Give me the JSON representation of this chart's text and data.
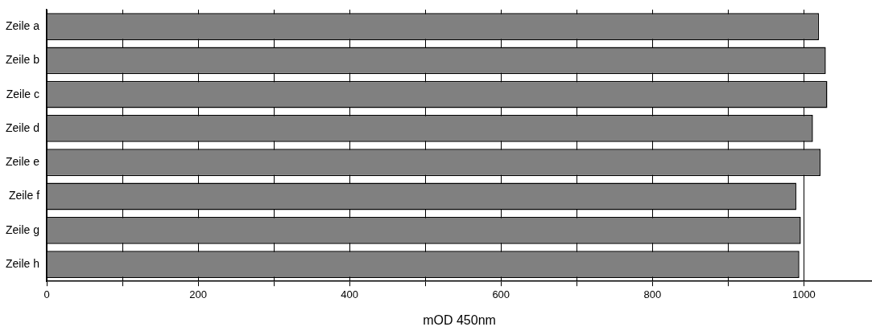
{
  "chart_data": {
    "type": "bar",
    "orientation": "horizontal",
    "xlabel": "mOD 450nm",
    "categories": [
      "Zeile a",
      "Zeile b",
      "Zeile c",
      "Zeile d",
      "Zeile e",
      "Zeile f",
      "Zeile g",
      "Zeile h"
    ],
    "values": [
      1020,
      1029,
      1031,
      1012,
      1022,
      990,
      996,
      994
    ],
    "color": "#808080",
    "xlim": [
      0,
      1090
    ],
    "xticks": [
      0,
      {
        "value": 100,
        "label": null
      },
      200,
      {
        "value": 300,
        "label": null
      },
      400,
      {
        "value": 500,
        "label": null
      },
      600,
      {
        "value": 700,
        "label": null
      },
      800,
      {
        "value": 900,
        "label": null
      },
      1000
    ],
    "grid": "x",
    "legend": false
  }
}
